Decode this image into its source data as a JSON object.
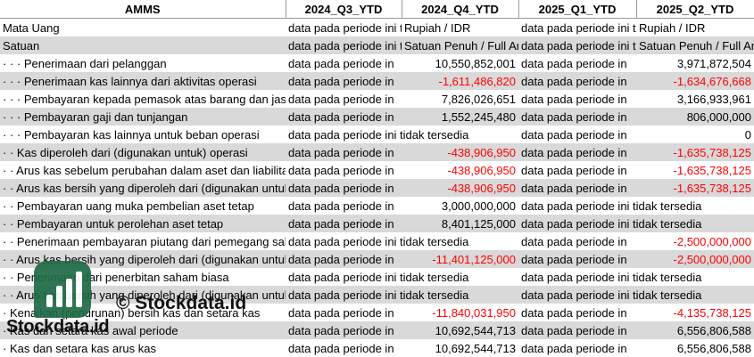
{
  "header": {
    "name": "AMMS",
    "periods": [
      "2024_Q3_YTD",
      "2024_Q4_YTD",
      "2025_Q1_YTD",
      "2025_Q2_YTD"
    ]
  },
  "rows": [
    {
      "label": "Mata Uang",
      "cells": [
        "data pada periode ini tidak tersedia",
        "Rupiah / IDR",
        "data pada periode ini tidak tersedia",
        "Rupiah / IDR"
      ]
    },
    {
      "label": "Satuan",
      "cells": [
        "data pada periode ini tidak tersedia",
        "Satuan Penuh / Full Amount",
        "data pada periode ini tidak tersedia",
        "Satuan Penuh / Full Amount"
      ]
    },
    {
      "label": "· · · Penerimaan dari pelanggan",
      "cells": [
        "data pada periode in",
        "10,550,852,001",
        "data pada periode in",
        "3,971,872,504"
      ]
    },
    {
      "label": "· · · Penerimaan kas lainnya dari aktivitas operasi",
      "cells": [
        "data pada periode in",
        "-1,611,486,820",
        "data pada periode in",
        "-1,634,676,668"
      ]
    },
    {
      "label": "· · · Pembayaran kepada pemasok atas barang dan jasa",
      "cells": [
        "data pada periode in",
        "7,826,026,651",
        "data pada periode in",
        "3,166,933,961"
      ]
    },
    {
      "label": "· · · Pembayaran gaji dan tunjangan",
      "cells": [
        "data pada periode in",
        "1,552,245,480",
        "data pada periode in",
        "806,000,000"
      ]
    },
    {
      "label": "· · · Pembayaran kas lainnya untuk beban operasi",
      "cells": [
        "data pada periode ini tidak tersedia",
        "",
        "data pada periode in",
        "0"
      ]
    },
    {
      "label": "· · Kas diperoleh dari (digunakan untuk) operasi",
      "cells": [
        "data pada periode in",
        "-438,906,950",
        "data pada periode in",
        "-1,635,738,125"
      ]
    },
    {
      "label": "· · Arus kas sebelum perubahan dalam aset dan liabilitas",
      "cells": [
        "data pada periode in",
        "-438,906,950",
        "data pada periode in",
        "-1,635,738,125"
      ]
    },
    {
      "label": "· · Arus kas bersih yang diperoleh dari (digunakan untuk)",
      "cells": [
        "data pada periode in",
        "-438,906,950",
        "data pada periode in",
        "-1,635,738,125"
      ]
    },
    {
      "label": "· · Pembayaran uang muka pembelian aset tetap",
      "cells": [
        "data pada periode in",
        "3,000,000,000",
        "data pada periode ini tidak tersedia",
        ""
      ]
    },
    {
      "label": "· · Pembayaran untuk perolehan aset tetap",
      "cells": [
        "data pada periode in",
        "8,401,125,000",
        "data pada periode ini tidak tersedia",
        ""
      ]
    },
    {
      "label": "· · Penerimaan pembayaran piutang dari pemegang saham",
      "cells": [
        "data pada periode ini tidak tersedia",
        "",
        "data pada periode in",
        "-2,500,000,000"
      ]
    },
    {
      "label": "· · Arus kas bersih yang diperoleh dari (digunakan untuk)",
      "cells": [
        "data pada periode in",
        "-11,401,125,000",
        "data pada periode in",
        "-2,500,000,000"
      ]
    },
    {
      "label": "· · Penerimaan dari penerbitan saham biasa",
      "cells": [
        "data pada periode ini tidak tersedia",
        "",
        "data pada periode ini tidak tersedia",
        ""
      ]
    },
    {
      "label": "· · Arus kas bersih yang diperoleh dari (digunakan untuk)",
      "cells": [
        "data pada periode ini tidak tersedia",
        "",
        "data pada periode ini tidak tersedia",
        ""
      ]
    },
    {
      "label": "· Kenaikan (penurunan) bersih kas dan setara kas",
      "cells": [
        "data pada periode in",
        "-11,840,031,950",
        "data pada periode in",
        "-4,135,738,125"
      ]
    },
    {
      "label": "· Kas dan setara kas awal periode",
      "cells": [
        "data pada periode in",
        "10,692,544,713",
        "data pada periode in",
        "6,556,806,588"
      ]
    },
    {
      "label": "· Kas dan setara kas arus kas",
      "cells": [
        "data pada periode in",
        "10,692,544,713",
        "data pada periode in",
        "6,556,806,588"
      ]
    }
  ],
  "watermark": {
    "copyright": "© Stockdata.id",
    "brand": "Stockdata.id"
  },
  "colors": {
    "negative": "#ff0000",
    "band": "#d9d9d9",
    "logo": "#1f6b47"
  }
}
